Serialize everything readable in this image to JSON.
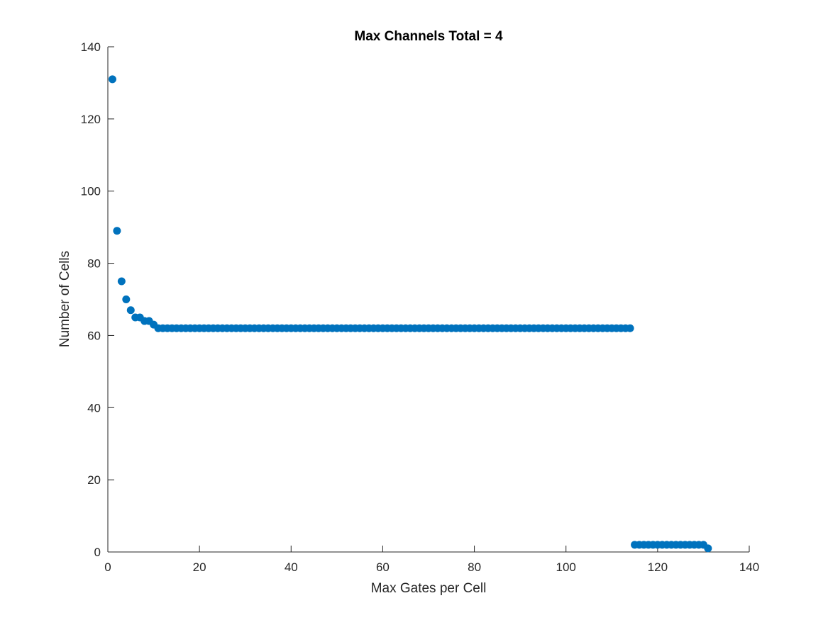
{
  "colors": {
    "background": "#ffffff",
    "axis": "#262626",
    "marker": "#0072BD"
  },
  "chart_data": {
    "type": "scatter",
    "title": "Max Channels Total = 4",
    "xlabel": "Max Gates per Cell",
    "ylabel": "Number of Cells",
    "xlim": [
      0,
      140
    ],
    "ylim": [
      0,
      140
    ],
    "xticks": [
      0,
      20,
      40,
      60,
      80,
      100,
      120,
      140
    ],
    "yticks": [
      0,
      20,
      40,
      60,
      80,
      100,
      120,
      140
    ],
    "grid": false,
    "legend": "none",
    "series": [
      {
        "marker": "filled-circle",
        "x": [
          1,
          2,
          3,
          4,
          5,
          6,
          7,
          8,
          9,
          10,
          11,
          12,
          13,
          14,
          15,
          16,
          17,
          18,
          19,
          20,
          21,
          22,
          23,
          24,
          25,
          26,
          27,
          28,
          29,
          30,
          31,
          32,
          33,
          34,
          35,
          36,
          37,
          38,
          39,
          40,
          41,
          42,
          43,
          44,
          45,
          46,
          47,
          48,
          49,
          50,
          51,
          52,
          53,
          54,
          55,
          56,
          57,
          58,
          59,
          60,
          61,
          62,
          63,
          64,
          65,
          66,
          67,
          68,
          69,
          70,
          71,
          72,
          73,
          74,
          75,
          76,
          77,
          78,
          79,
          80,
          81,
          82,
          83,
          84,
          85,
          86,
          87,
          88,
          89,
          90,
          91,
          92,
          93,
          94,
          95,
          96,
          97,
          98,
          99,
          100,
          101,
          102,
          103,
          104,
          105,
          106,
          107,
          108,
          109,
          110,
          111,
          112,
          113,
          114,
          115,
          116,
          117,
          118,
          119,
          120,
          121,
          122,
          123,
          124,
          125,
          126,
          127,
          128,
          129,
          130,
          131
        ],
        "y": [
          131,
          89,
          75,
          70,
          67,
          65,
          65,
          64,
          64,
          63,
          62,
          62,
          62,
          62,
          62,
          62,
          62,
          62,
          62,
          62,
          62,
          62,
          62,
          62,
          62,
          62,
          62,
          62,
          62,
          62,
          62,
          62,
          62,
          62,
          62,
          62,
          62,
          62,
          62,
          62,
          62,
          62,
          62,
          62,
          62,
          62,
          62,
          62,
          62,
          62,
          62,
          62,
          62,
          62,
          62,
          62,
          62,
          62,
          62,
          62,
          62,
          62,
          62,
          62,
          62,
          62,
          62,
          62,
          62,
          62,
          62,
          62,
          62,
          62,
          62,
          62,
          62,
          62,
          62,
          62,
          62,
          62,
          62,
          62,
          62,
          62,
          62,
          62,
          62,
          62,
          62,
          62,
          62,
          62,
          62,
          62,
          62,
          62,
          62,
          62,
          62,
          62,
          62,
          62,
          62,
          62,
          62,
          62,
          62,
          62,
          62,
          62,
          62,
          62,
          2,
          2,
          2,
          2,
          2,
          2,
          2,
          2,
          2,
          2,
          2,
          2,
          2,
          2,
          2,
          2,
          1
        ]
      }
    ]
  }
}
